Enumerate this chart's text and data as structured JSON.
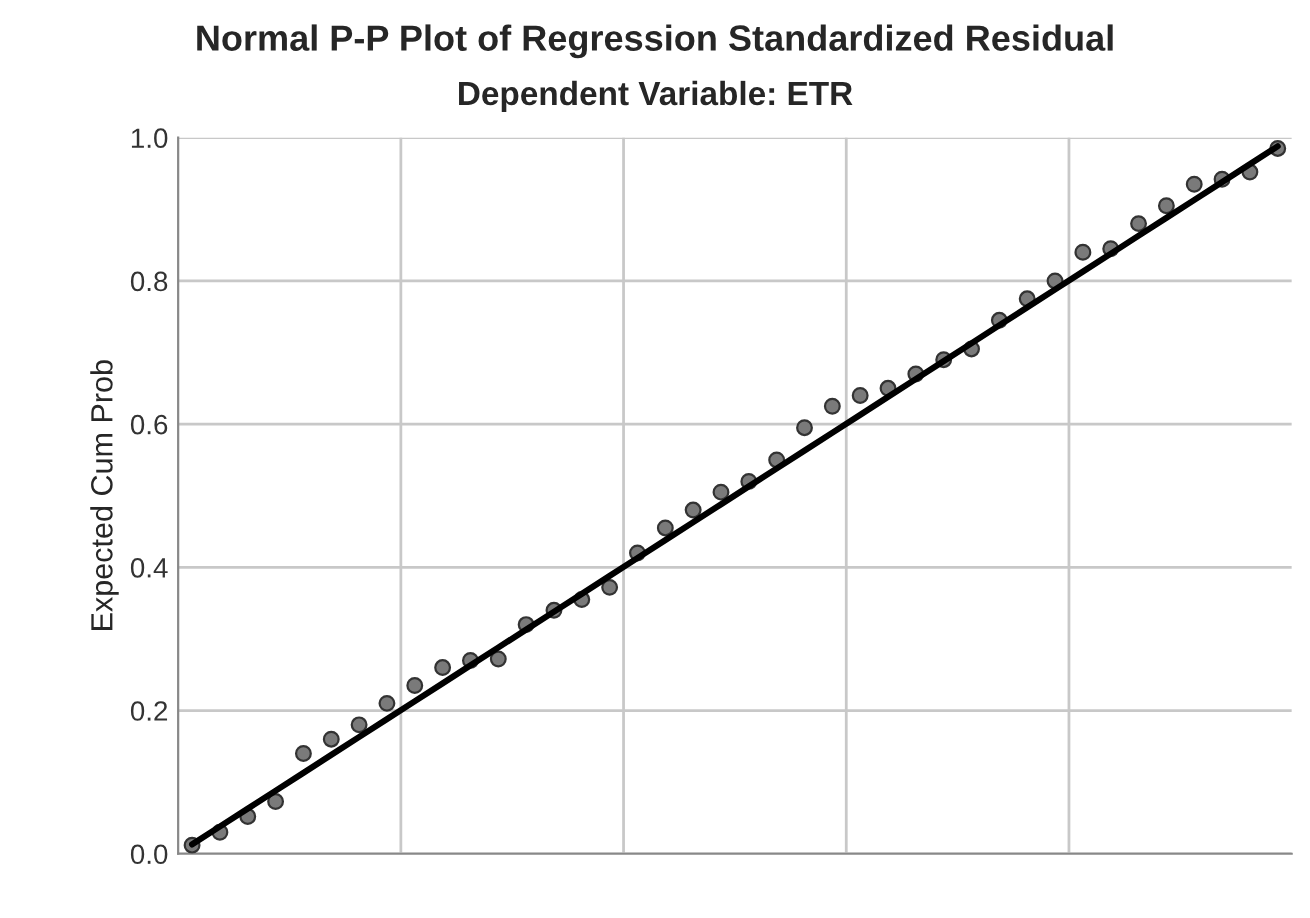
{
  "chart_data": {
    "type": "scatter",
    "title": "Normal P-P Plot of Regression Standardized Residual",
    "subtitle": "Dependent Variable: ETR",
    "ylabel": "Expected Cum Prob",
    "ylim": [
      0,
      1
    ],
    "yticks": [
      {
        "value": 0.0,
        "label": "0.0"
      },
      {
        "value": 0.2,
        "label": "0.2"
      },
      {
        "value": 0.4,
        "label": "0.4"
      },
      {
        "value": 0.6,
        "label": "0.6"
      },
      {
        "value": 0.8,
        "label": "0.8"
      },
      {
        "value": 1.0,
        "label": "1.0"
      }
    ],
    "tick_labels": "y",
    "grid": true,
    "categories": [
      null,
      null,
      null,
      null,
      null,
      null,
      null,
      null,
      null,
      null,
      null,
      null,
      null,
      null,
      null,
      null,
      null,
      null,
      null,
      null,
      null,
      null,
      null,
      null,
      null,
      null,
      null,
      null,
      null,
      null,
      null,
      null,
      null,
      null,
      null,
      null,
      null,
      null,
      null,
      null
    ],
    "series": [
      {
        "color": "#7a7a7a",
        "marker": "circle",
        "values": [
          0.012,
          0.03,
          0.052,
          0.073,
          0.14,
          0.16,
          0.18,
          0.21,
          0.235,
          0.26,
          0.27,
          0.272,
          0.32,
          0.34,
          0.355,
          0.372,
          0.42,
          0.455,
          0.48,
          0.505,
          0.52,
          0.55,
          0.595,
          0.625,
          0.64,
          0.65,
          0.67,
          0.69,
          0.705,
          0.745,
          0.775,
          0.8,
          0.84,
          0.845,
          0.88,
          0.905,
          0.935,
          0.942,
          0.952,
          0.985
        ]
      },
      {
        "type": "line",
        "color": "#000000",
        "values": [
          0.013,
          0.038,
          0.063,
          0.088,
          0.113,
          0.138,
          0.163,
          0.188,
          0.213,
          0.238,
          0.263,
          0.288,
          0.313,
          0.338,
          0.363,
          0.388,
          0.413,
          0.438,
          0.463,
          0.488,
          0.513,
          0.538,
          0.563,
          0.588,
          0.613,
          0.638,
          0.663,
          0.688,
          0.713,
          0.738,
          0.763,
          0.788,
          0.813,
          0.838,
          0.863,
          0.888,
          0.913,
          0.938,
          0.963,
          0.988
        ]
      }
    ]
  }
}
